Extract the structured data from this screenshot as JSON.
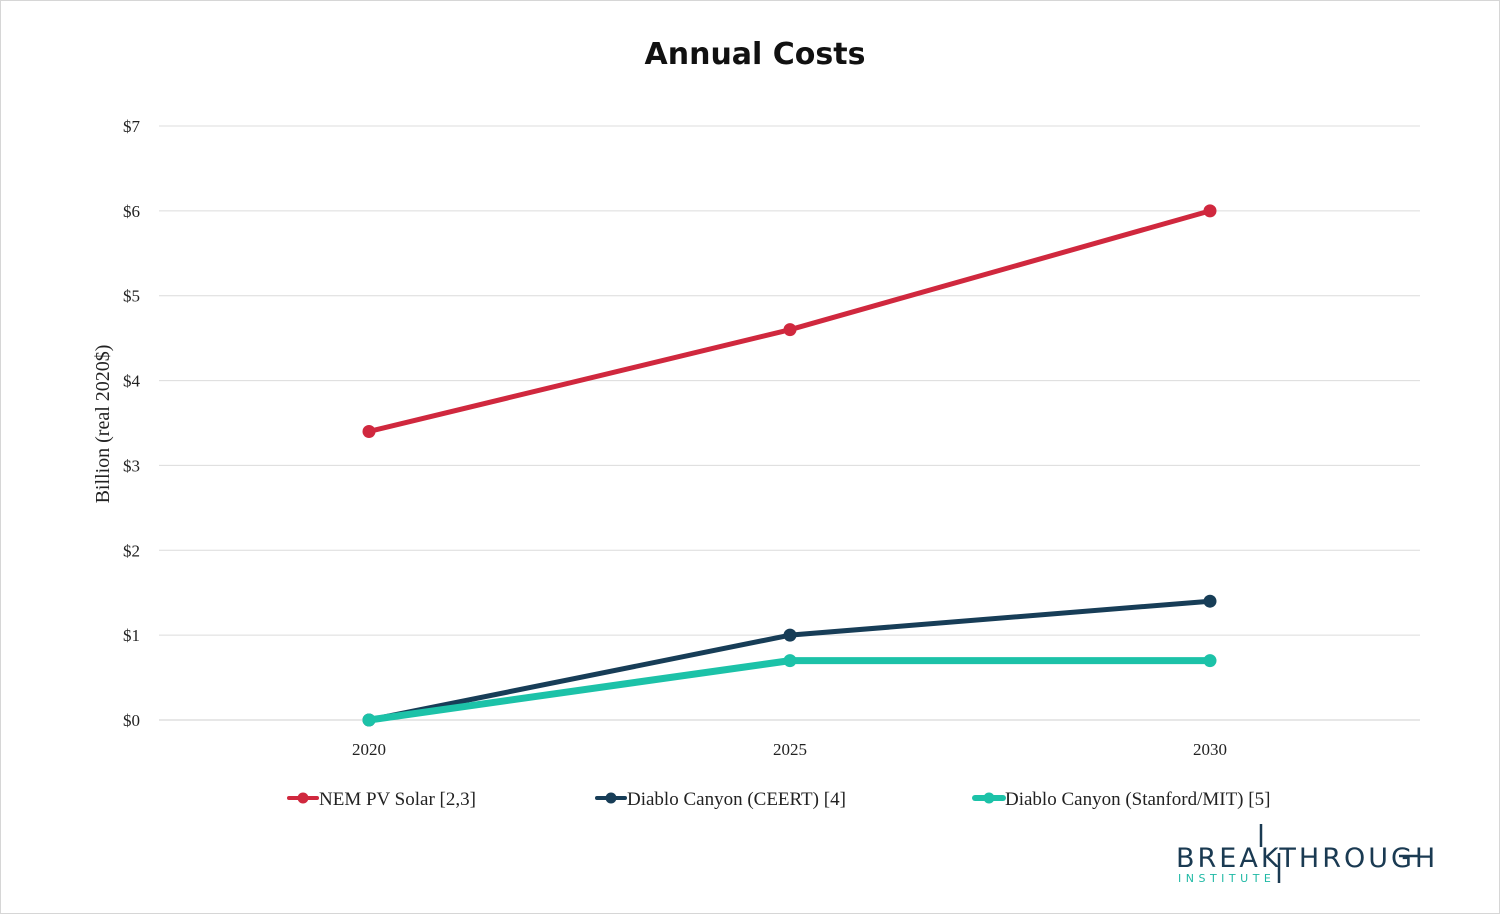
{
  "chart_data": {
    "type": "line",
    "title": "Annual Costs",
    "ylabel": "Billion (real 2020$)",
    "xlabel": "",
    "categories": [
      "2020",
      "2025",
      "2030"
    ],
    "ylim": [
      0,
      7
    ],
    "yticks": [
      {
        "value": 0,
        "label": "$0"
      },
      {
        "value": 1,
        "label": "$1"
      },
      {
        "value": 2,
        "label": "$2"
      },
      {
        "value": 3,
        "label": "$3"
      },
      {
        "value": 4,
        "label": "$4"
      },
      {
        "value": 5,
        "label": "$5"
      },
      {
        "value": 6,
        "label": "$6"
      },
      {
        "value": 7,
        "label": "$7"
      }
    ],
    "grid": true,
    "legend_position": "bottom",
    "series": [
      {
        "name": "NEM PV Solar [2,3]",
        "values": [
          3.4,
          4.6,
          6.0
        ],
        "color": "#d0283e"
      },
      {
        "name": "Diablo Canyon (CEERT) [4]",
        "values": [
          0.0,
          1.0,
          1.4
        ],
        "color": "#173d57"
      },
      {
        "name": "Diablo Canyon (Stanford/MIT) [5]",
        "values": [
          0.0,
          0.7,
          0.7
        ],
        "color": "#1cc2a8"
      }
    ]
  },
  "logo": {
    "word": "BREAKTHROUGH",
    "sub": "INSTITUTE",
    "colors": {
      "word": "#1a3a52",
      "sub": "#1fb9a5"
    }
  }
}
